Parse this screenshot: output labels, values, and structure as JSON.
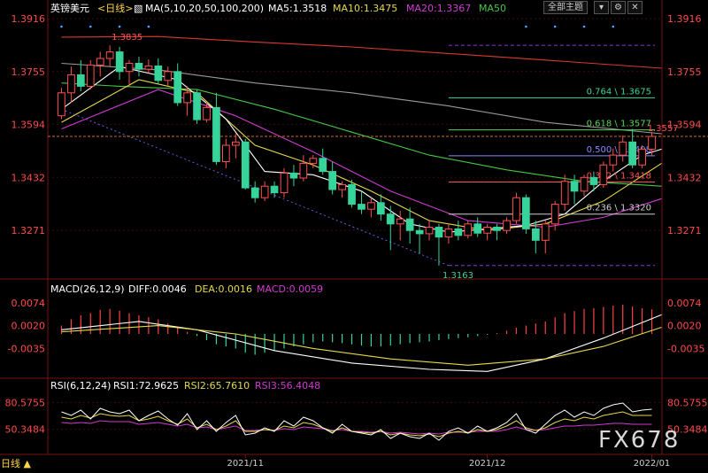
{
  "header": {
    "symbol": "英镑美元",
    "period": "<日线>",
    "ma_label": "MA(5,10,20,50,100,200)",
    "ma5": "MA5:1.3518",
    "ma10": "MA10:1.3475",
    "ma20": "MA20:1.3367",
    "ma50": "MA50",
    "theme_button": "全部主题",
    "colors": {
      "ma5": "#ffffff",
      "ma10": "#e6d84a",
      "ma20": "#d23ad2",
      "ma50": "#45c845",
      "ma100": "#9a9a9a",
      "ma200": "#d83a30",
      "up": "#ff5050",
      "down": "#36d39b"
    }
  },
  "price_axis": {
    "left": [
      "1.3916",
      "1.3755",
      "1.3594",
      "1.3432",
      "1.3271"
    ],
    "right": [
      "1.3916",
      "1.3755",
      "1.3594",
      "1.3432",
      "1.3271"
    ]
  },
  "macd": {
    "title": "MACD(26,12,9)",
    "diff": "DIFF:0.0046",
    "dea": "DEA:0.0016",
    "macd": "MACD:0.0059",
    "ticks": [
      "0.0074",
      "0.0020",
      "-0.0035"
    ]
  },
  "rsi": {
    "title": "RSI(6,12,24)",
    "rsi1": "RSI1:72.9625",
    "rsi2": "RSI2:65.7610",
    "rsi3": "RSI3:56.4048",
    "ticks": [
      "80.5755",
      "50.3484"
    ]
  },
  "dates": [
    "2021/11",
    "2021/12",
    "2022/01"
  ],
  "footer": {
    "period_label": "日线"
  },
  "watermark": "FX678",
  "chart_data": {
    "type": "candlestick",
    "price_range": [
      1.313,
      1.393
    ],
    "annotations": {
      "high": "1.3835",
      "low": "1.3163",
      "last": "1.3557"
    },
    "fibonacci": [
      {
        "label": "0.764 \\ 1.3675",
        "value": 1.3675,
        "color": "#3fd29a"
      },
      {
        "label": "0.618 \\ 1.3577",
        "value": 1.3577,
        "color": "#5ad25a"
      },
      {
        "label": "0.500 \\ 1.3498",
        "value": 1.3498,
        "color": "#8a8aff"
      },
      {
        "label": "0.382 \\ 1.3418",
        "value": 1.3418,
        "color": "#ff5050"
      },
      {
        "label": "0.236 \\ 1.3320",
        "value": 1.332,
        "color": "#cfcfcf"
      }
    ],
    "candles": [
      [
        1.362,
        1.3705,
        1.361,
        1.369
      ],
      [
        1.369,
        1.377,
        1.366,
        1.3745
      ],
      [
        1.3745,
        1.379,
        1.3695,
        1.371
      ],
      [
        1.371,
        1.379,
        1.37,
        1.3775
      ],
      [
        1.3775,
        1.3815,
        1.374,
        1.3795
      ],
      [
        1.3795,
        1.3835,
        1.377,
        1.3815
      ],
      [
        1.3815,
        1.383,
        1.373,
        1.3755
      ],
      [
        1.3755,
        1.379,
        1.371,
        1.378
      ],
      [
        1.378,
        1.38,
        1.374,
        1.3762
      ],
      [
        1.3762,
        1.3792,
        1.375,
        1.3772
      ],
      [
        1.3772,
        1.3795,
        1.3715,
        1.3728
      ],
      [
        1.3728,
        1.377,
        1.3712,
        1.3755
      ],
      [
        1.3755,
        1.378,
        1.365,
        1.366
      ],
      [
        1.366,
        1.371,
        1.362,
        1.369
      ],
      [
        1.369,
        1.37,
        1.3595,
        1.3608
      ],
      [
        1.3608,
        1.366,
        1.36,
        1.3645
      ],
      [
        1.3645,
        1.369,
        1.347,
        1.348
      ],
      [
        1.348,
        1.355,
        1.346,
        1.353
      ],
      [
        1.353,
        1.3565,
        1.349,
        1.354
      ],
      [
        1.354,
        1.355,
        1.3395,
        1.34
      ],
      [
        1.34,
        1.342,
        1.3355,
        1.337
      ],
      [
        1.337,
        1.342,
        1.336,
        1.3405
      ],
      [
        1.3405,
        1.342,
        1.337,
        1.3385
      ],
      [
        1.3385,
        1.346,
        1.337,
        1.3445
      ],
      [
        1.3445,
        1.347,
        1.3405,
        1.343
      ],
      [
        1.343,
        1.35,
        1.342,
        1.3475
      ],
      [
        1.3475,
        1.35,
        1.346,
        1.349
      ],
      [
        1.349,
        1.352,
        1.344,
        1.345
      ],
      [
        1.345,
        1.348,
        1.338,
        1.3395
      ],
      [
        1.3395,
        1.342,
        1.337,
        1.341
      ],
      [
        1.341,
        1.3425,
        1.334,
        1.335
      ],
      [
        1.335,
        1.339,
        1.332,
        1.3335
      ],
      [
        1.3335,
        1.337,
        1.331,
        1.3355
      ],
      [
        1.3355,
        1.338,
        1.33,
        1.332
      ],
      [
        1.332,
        1.3345,
        1.321,
        1.329
      ],
      [
        1.329,
        1.333,
        1.324,
        1.3305
      ],
      [
        1.3305,
        1.334,
        1.323,
        1.327
      ],
      [
        1.327,
        1.329,
        1.32,
        1.326
      ],
      [
        1.326,
        1.33,
        1.324,
        1.328
      ],
      [
        1.328,
        1.329,
        1.3163,
        1.325
      ],
      [
        1.325,
        1.329,
        1.323,
        1.3275
      ],
      [
        1.3275,
        1.33,
        1.324,
        1.3255
      ],
      [
        1.3255,
        1.33,
        1.3245,
        1.329
      ],
      [
        1.329,
        1.331,
        1.325,
        1.3262
      ],
      [
        1.3262,
        1.329,
        1.324,
        1.328
      ],
      [
        1.328,
        1.329,
        1.324,
        1.327
      ],
      [
        1.327,
        1.331,
        1.326,
        1.33
      ],
      [
        1.33,
        1.3385,
        1.329,
        1.337
      ],
      [
        1.337,
        1.338,
        1.326,
        1.3275
      ],
      [
        1.3275,
        1.33,
        1.32,
        1.324
      ],
      [
        1.324,
        1.33,
        1.32,
        1.329
      ],
      [
        1.329,
        1.336,
        1.327,
        1.335
      ],
      [
        1.335,
        1.344,
        1.333,
        1.342
      ],
      [
        1.342,
        1.344,
        1.335,
        1.339
      ],
      [
        1.339,
        1.344,
        1.3375,
        1.3432
      ],
      [
        1.3432,
        1.345,
        1.339,
        1.341
      ],
      [
        1.341,
        1.348,
        1.34,
        1.347
      ],
      [
        1.347,
        1.352,
        1.345,
        1.35
      ],
      [
        1.35,
        1.356,
        1.348,
        1.354
      ],
      [
        1.354,
        1.358,
        1.346,
        1.347
      ],
      [
        1.347,
        1.353,
        1.346,
        1.3518
      ],
      [
        1.3518,
        1.357,
        1.35,
        1.3557
      ]
    ],
    "ma": {
      "ma5": [
        [
          0,
          1.364
        ],
        [
          6,
          1.377
        ],
        [
          12,
          1.373
        ],
        [
          17,
          1.361
        ],
        [
          21,
          1.345
        ],
        [
          26,
          1.344
        ],
        [
          31,
          1.339
        ],
        [
          36,
          1.329
        ],
        [
          40,
          1.3265
        ],
        [
          44,
          1.3275
        ],
        [
          48,
          1.3285
        ],
        [
          52,
          1.332
        ],
        [
          56,
          1.342
        ],
        [
          60,
          1.35
        ],
        [
          62,
          1.3518
        ]
      ],
      "ma10": [
        [
          0,
          1.36
        ],
        [
          8,
          1.373
        ],
        [
          14,
          1.369
        ],
        [
          20,
          1.353
        ],
        [
          26,
          1.347
        ],
        [
          32,
          1.339
        ],
        [
          38,
          1.33
        ],
        [
          44,
          1.327
        ],
        [
          50,
          1.329
        ],
        [
          56,
          1.336
        ],
        [
          62,
          1.3475
        ]
      ],
      "ma20": [
        [
          0,
          1.358
        ],
        [
          10,
          1.37
        ],
        [
          18,
          1.362
        ],
        [
          26,
          1.351
        ],
        [
          34,
          1.339
        ],
        [
          42,
          1.33
        ],
        [
          50,
          1.328
        ],
        [
          56,
          1.331
        ],
        [
          62,
          1.3367
        ]
      ],
      "ma50": [
        [
          0,
          1.372
        ],
        [
          6,
          1.371
        ],
        [
          14,
          1.37
        ],
        [
          22,
          1.364
        ],
        [
          30,
          1.357
        ],
        [
          38,
          1.35
        ],
        [
          46,
          1.3455
        ],
        [
          54,
          1.342
        ],
        [
          62,
          1.3405
        ]
      ],
      "ma100": [
        [
          0,
          1.378
        ],
        [
          10,
          1.376
        ],
        [
          20,
          1.372
        ],
        [
          30,
          1.369
        ],
        [
          40,
          1.365
        ],
        [
          50,
          1.36
        ],
        [
          62,
          1.3565
        ]
      ],
      "ma200": [
        [
          0,
          1.386
        ],
        [
          10,
          1.3862
        ],
        [
          20,
          1.3845
        ],
        [
          30,
          1.383
        ],
        [
          40,
          1.381
        ],
        [
          50,
          1.379
        ],
        [
          62,
          1.3765
        ]
      ]
    },
    "macd_hist": [
      0.002,
      0.0035,
      0.0045,
      0.005,
      0.0058,
      0.006,
      0.0056,
      0.005,
      0.0045,
      0.004,
      0.0035,
      0.0025,
      0.0015,
      0.0005,
      -0.0005,
      -0.0015,
      -0.0025,
      -0.003,
      -0.0035,
      -0.0045,
      -0.005,
      -0.0045,
      -0.004,
      -0.0035,
      -0.003,
      -0.0025,
      -0.002,
      -0.0018,
      -0.002,
      -0.0022,
      -0.0025,
      -0.0028,
      -0.003,
      -0.003,
      -0.0028,
      -0.0025,
      -0.0022,
      -0.002,
      -0.0018,
      -0.0015,
      -0.0012,
      -0.001,
      -0.0008,
      -0.0005,
      -0.0002,
      0.0002,
      0.0008,
      0.0015,
      0.002,
      0.0025,
      0.003,
      0.004,
      0.005,
      0.0055,
      0.006,
      0.0062,
      0.0065,
      0.0068,
      0.007,
      0.0066,
      0.0062,
      0.0059
    ],
    "macd_diff": [
      [
        0,
        0.001
      ],
      [
        8,
        0.003
      ],
      [
        14,
        0.001
      ],
      [
        22,
        -0.004
      ],
      [
        30,
        -0.007
      ],
      [
        38,
        -0.0085
      ],
      [
        44,
        -0.009
      ],
      [
        50,
        -0.006
      ],
      [
        56,
        -0.001
      ],
      [
        62,
        0.0046
      ]
    ],
    "macd_dea": [
      [
        0,
        0.0005
      ],
      [
        10,
        0.002
      ],
      [
        18,
        0.0
      ],
      [
        26,
        -0.0035
      ],
      [
        34,
        -0.006
      ],
      [
        42,
        -0.0075
      ],
      [
        50,
        -0.006
      ],
      [
        56,
        -0.003
      ],
      [
        62,
        0.0016
      ]
    ],
    "rsi1": [
      70,
      66,
      72,
      62,
      74,
      70,
      68,
      72,
      60,
      66,
      71,
      62,
      55,
      68,
      50,
      60,
      48,
      58,
      66,
      44,
      46,
      52,
      48,
      60,
      54,
      64,
      60,
      52,
      46,
      56,
      48,
      46,
      44,
      50,
      40,
      46,
      42,
      40,
      46,
      38,
      48,
      52,
      46,
      54,
      48,
      52,
      58,
      68,
      50,
      46,
      56,
      66,
      72,
      64,
      70,
      66,
      74,
      78,
      80,
      70,
      72,
      73
    ],
    "rsi2": [
      64,
      62,
      66,
      63,
      68,
      66,
      65,
      66,
      60,
      62,
      65,
      60,
      56,
      62,
      52,
      56,
      50,
      54,
      60,
      48,
      48,
      50,
      49,
      54,
      52,
      58,
      56,
      52,
      48,
      52,
      48,
      47,
      46,
      48,
      44,
      46,
      44,
      43,
      45,
      42,
      46,
      48,
      46,
      50,
      48,
      50,
      54,
      60,
      52,
      49,
      52,
      58,
      62,
      60,
      64,
      62,
      66,
      68,
      70,
      66,
      66,
      66
    ],
    "rsi3": [
      58,
      57,
      58,
      57,
      60,
      59,
      59,
      59,
      56,
      57,
      58,
      56,
      54,
      56,
      52,
      53,
      50,
      52,
      54,
      49,
      49,
      50,
      49,
      51,
      50,
      53,
      52,
      51,
      49,
      50,
      48,
      48,
      47,
      48,
      46,
      47,
      46,
      45,
      46,
      45,
      47,
      47,
      47,
      48,
      48,
      48,
      50,
      53,
      50,
      49,
      50,
      52,
      54,
      54,
      55,
      55,
      56,
      57,
      57,
      56,
      56,
      56
    ]
  }
}
